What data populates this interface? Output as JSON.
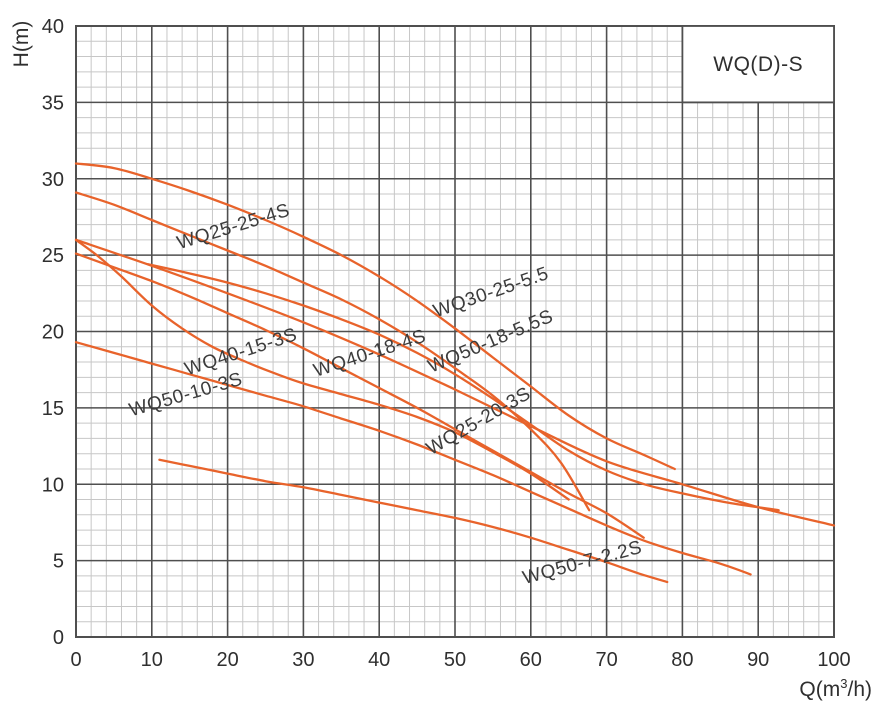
{
  "title_box": {
    "label": "WQ(D)-S"
  },
  "axes": {
    "x": {
      "label_parts": [
        "Q(m",
        "3",
        "/h)"
      ],
      "ticks": [
        0,
        10,
        20,
        30,
        40,
        50,
        60,
        70,
        80,
        90,
        100
      ]
    },
    "y": {
      "label": "H(m)",
      "ticks": [
        0,
        5,
        10,
        15,
        20,
        25,
        30,
        35,
        40
      ]
    }
  },
  "colors": {
    "curve": "#e8632b",
    "grid_minor": "#c7c7c7",
    "grid_major": "#4f4f4f",
    "border": "#4f4f4f",
    "axis_text": "#2f2f2f",
    "curve_label_text": "#3c3c3c",
    "background": "#ffffff"
  },
  "chart_data": {
    "type": "line",
    "title": "WQ(D)-S",
    "xlabel": "Q(m3/h)",
    "ylabel": "H(m)",
    "xlim": [
      0,
      100
    ],
    "ylim": [
      0,
      40
    ],
    "x_major_step": 10,
    "x_minor_step": 2,
    "y_major_step": 5,
    "y_minor_step": 1,
    "grid": true,
    "legend_position": "top-right-box",
    "series": [
      {
        "name": "WQ30-25-5.5",
        "label": {
          "text": "WQ30-25-5.5",
          "q": 55,
          "h": 22.2,
          "rot": -19
        },
        "points": [
          [
            0,
            31
          ],
          [
            5,
            30.7
          ],
          [
            10,
            30
          ],
          [
            15,
            29.2
          ],
          [
            20,
            28.3
          ],
          [
            25,
            27.3
          ],
          [
            30,
            26.2
          ],
          [
            35,
            25
          ],
          [
            40,
            23.6
          ],
          [
            45,
            22
          ],
          [
            50,
            20.2
          ],
          [
            55,
            18.3
          ],
          [
            60,
            16.4
          ],
          [
            65,
            14.5
          ],
          [
            70,
            13
          ],
          [
            75,
            11.9
          ],
          [
            79,
            11
          ]
        ]
      },
      {
        "name": "WQ25-25-4S",
        "label": {
          "text": "WQ25-25-4S",
          "q": 21,
          "h": 26.5,
          "rot": -17
        },
        "points": [
          [
            0,
            29.1
          ],
          [
            5,
            28.3
          ],
          [
            10,
            27.3
          ],
          [
            15,
            26.3
          ],
          [
            20,
            25.3
          ],
          [
            25,
            24.3
          ],
          [
            30,
            23.2
          ],
          [
            35,
            22.1
          ],
          [
            40,
            20.8
          ],
          [
            45,
            19.3
          ],
          [
            50,
            17.6
          ],
          [
            55,
            15.8
          ],
          [
            60,
            13.6
          ],
          [
            64,
            11.4
          ],
          [
            67.7,
            8.3
          ]
        ]
      },
      {
        "name": "WQ50-18-5.5S",
        "label": {
          "text": "WQ50-18-5.5S",
          "q": 55,
          "h": 19,
          "rot": -23
        },
        "points": [
          [
            0,
            26
          ],
          [
            10,
            24.3
          ],
          [
            20,
            22.5
          ],
          [
            30,
            20.6
          ],
          [
            40,
            18.5
          ],
          [
            50,
            16.2
          ],
          [
            60,
            13.8
          ],
          [
            70,
            11.5
          ],
          [
            80,
            10
          ],
          [
            90,
            8.5
          ],
          [
            100,
            7.3
          ]
        ]
      },
      {
        "name": "WQ40-18-4S",
        "label": {
          "text": "WQ40-18-4S",
          "q": 39,
          "h": 18.2,
          "rot": -18
        },
        "points": [
          [
            9.5,
            24.4
          ],
          [
            15,
            23.8
          ],
          [
            20,
            23.2
          ],
          [
            25,
            22.5
          ],
          [
            30,
            21.7
          ],
          [
            35,
            20.8
          ],
          [
            40,
            19.8
          ],
          [
            45,
            18.6
          ],
          [
            50,
            17.2
          ],
          [
            55,
            15.6
          ],
          [
            60,
            13.9
          ],
          [
            65,
            12.2
          ],
          [
            70,
            10.9
          ],
          [
            75,
            10
          ],
          [
            80,
            9.4
          ],
          [
            86,
            8.8
          ],
          [
            92.7,
            8.3
          ]
        ]
      },
      {
        "name": "WQ40-15-3S",
        "label": {
          "text": "WQ40-15-3S",
          "q": 22,
          "h": 18.3,
          "rot": -18
        },
        "points": [
          [
            0,
            26
          ],
          [
            3,
            24.9
          ],
          [
            6,
            23.6
          ],
          [
            10,
            21.7
          ],
          [
            14,
            20.2
          ],
          [
            18,
            19
          ],
          [
            22,
            18.1
          ],
          [
            26,
            17.3
          ],
          [
            30,
            16.6
          ],
          [
            35,
            15.9
          ],
          [
            40,
            15.2
          ],
          [
            45,
            14.4
          ],
          [
            50,
            13.4
          ],
          [
            55,
            12.1
          ],
          [
            60,
            10.7
          ],
          [
            65,
            9
          ]
        ]
      },
      {
        "name": "WQ25-20-3S",
        "label": {
          "text": "WQ25-20-3S",
          "q": 53.5,
          "h": 13.8,
          "rot": -30
        },
        "points": [
          [
            0,
            25.1
          ],
          [
            5,
            24.2
          ],
          [
            10,
            23.3
          ],
          [
            15,
            22.3
          ],
          [
            20,
            21.2
          ],
          [
            25,
            20.1
          ],
          [
            30,
            18.9
          ],
          [
            35,
            17.6
          ],
          [
            40,
            16.3
          ],
          [
            45,
            15
          ],
          [
            50,
            13.6
          ],
          [
            55,
            12.2
          ],
          [
            60,
            10.8
          ],
          [
            65,
            9.4
          ],
          [
            70,
            8.1
          ],
          [
            74.9,
            6.5
          ]
        ]
      },
      {
        "name": "WQ50-10-3S",
        "label": {
          "text": "WQ50-10-3S",
          "q": 14.7,
          "h": 15.5,
          "rot": -16
        },
        "points": [
          [
            0,
            19.3
          ],
          [
            5,
            18.6
          ],
          [
            10,
            17.9
          ],
          [
            15,
            17.2
          ],
          [
            20,
            16.5
          ],
          [
            25,
            15.8
          ],
          [
            30,
            15.1
          ],
          [
            35,
            14.3
          ],
          [
            40,
            13.5
          ],
          [
            45,
            12.6
          ],
          [
            50,
            11.6
          ],
          [
            55,
            10.6
          ],
          [
            60,
            9.5
          ],
          [
            65,
            8.4
          ],
          [
            70,
            7.3
          ],
          [
            75,
            6.3
          ],
          [
            80,
            5.5
          ],
          [
            85,
            4.8
          ],
          [
            89,
            4.1
          ]
        ]
      },
      {
        "name": "WQ50-7-2.2S",
        "label": {
          "text": "WQ50-7-2.2S",
          "q": 67,
          "h": 4.5,
          "rot": -15
        },
        "points": [
          [
            11,
            11.6
          ],
          [
            15,
            11.2
          ],
          [
            20,
            10.7
          ],
          [
            25,
            10.2
          ],
          [
            30,
            9.8
          ],
          [
            35,
            9.3
          ],
          [
            40,
            8.8
          ],
          [
            45,
            8.3
          ],
          [
            50,
            7.8
          ],
          [
            55,
            7.2
          ],
          [
            60,
            6.5
          ],
          [
            65,
            5.7
          ],
          [
            70,
            4.9
          ],
          [
            74,
            4.2
          ],
          [
            78,
            3.6
          ]
        ]
      }
    ]
  }
}
